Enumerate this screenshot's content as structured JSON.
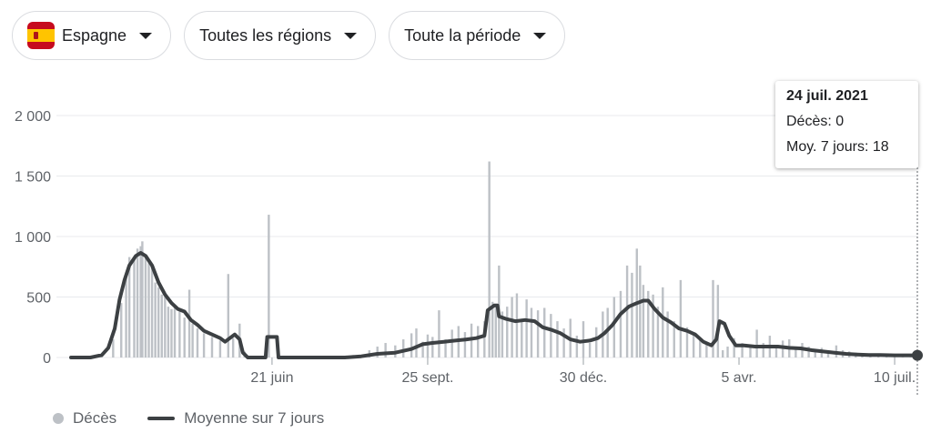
{
  "filters": {
    "country": "Espagne",
    "region": "Toutes les régions",
    "period": "Toute la période"
  },
  "colors": {
    "bars": "#bdc1c6",
    "line": "#3c4043",
    "grid": "#e8eaed",
    "axis_text": "#5f6368",
    "flag_red": "#c60b1e",
    "flag_yellow": "#ffc400"
  },
  "tooltip": {
    "date": "24 juil. 2021",
    "deaths": "Décès: 0",
    "avg": "Moy. 7 jours: 18"
  },
  "legend": {
    "bars_label": "Décès",
    "line_label": "Moyenne sur 7 jours"
  },
  "chart_data": {
    "type": "bar",
    "ylim": [
      0,
      2000
    ],
    "yticks": [
      0,
      500,
      1000,
      1500,
      2000
    ],
    "ytick_labels": [
      "0",
      "500",
      "1 000",
      "1 500",
      "2 000"
    ],
    "xticks": [
      {
        "date": "2020-06-21",
        "label": "21 juin"
      },
      {
        "date": "2020-09-25",
        "label": "25 sept."
      },
      {
        "date": "2020-12-30",
        "label": "30 déc."
      },
      {
        "date": "2021-04-05",
        "label": "5 avr."
      },
      {
        "date": "2021-07-10",
        "label": "10 juil."
      }
    ],
    "x_range": [
      "2020-02-18",
      "2021-07-24"
    ],
    "bar_series": {
      "name": "Décès",
      "points": [
        [
          "2020-03-01",
          0
        ],
        [
          "2020-03-08",
          20
        ],
        [
          "2020-03-15",
          150
        ],
        [
          "2020-03-20",
          450
        ],
        [
          "2020-03-23",
          700
        ],
        [
          "2020-03-25",
          830
        ],
        [
          "2020-03-28",
          820
        ],
        [
          "2020-03-30",
          900
        ],
        [
          "2020-04-01",
          920
        ],
        [
          "2020-04-02",
          960
        ],
        [
          "2020-04-04",
          850
        ],
        [
          "2020-04-06",
          780
        ],
        [
          "2020-04-08",
          750
        ],
        [
          "2020-04-10",
          620
        ],
        [
          "2020-04-12",
          580
        ],
        [
          "2020-04-14",
          520
        ],
        [
          "2020-04-16",
          500
        ],
        [
          "2020-04-18",
          420
        ],
        [
          "2020-04-20",
          400
        ],
        [
          "2020-04-22",
          430
        ],
        [
          "2020-04-25",
          380
        ],
        [
          "2020-04-28",
          330
        ],
        [
          "2020-05-01",
          560
        ],
        [
          "2020-05-03",
          280
        ],
        [
          "2020-05-06",
          240
        ],
        [
          "2020-05-10",
          200
        ],
        [
          "2020-05-15",
          170
        ],
        [
          "2020-05-20",
          140
        ],
        [
          "2020-05-25",
          690
        ],
        [
          "2020-05-28",
          160
        ],
        [
          "2020-06-01",
          280
        ],
        [
          "2020-06-04",
          50
        ],
        [
          "2020-06-08",
          0
        ],
        [
          "2020-06-19",
          1180
        ],
        [
          "2020-06-25",
          10
        ],
        [
          "2020-07-10",
          5
        ],
        [
          "2020-07-25",
          5
        ],
        [
          "2020-08-10",
          20
        ],
        [
          "2020-08-20",
          60
        ],
        [
          "2020-08-25",
          90
        ],
        [
          "2020-08-30",
          120
        ],
        [
          "2020-09-05",
          100
        ],
        [
          "2020-09-10",
          150
        ],
        [
          "2020-09-15",
          200
        ],
        [
          "2020-09-18",
          240
        ],
        [
          "2020-09-22",
          130
        ],
        [
          "2020-09-25",
          190
        ],
        [
          "2020-09-28",
          170
        ],
        [
          "2020-10-02",
          390
        ],
        [
          "2020-10-06",
          150
        ],
        [
          "2020-10-10",
          230
        ],
        [
          "2020-10-14",
          260
        ],
        [
          "2020-10-18",
          210
        ],
        [
          "2020-10-22",
          280
        ],
        [
          "2020-10-26",
          260
        ],
        [
          "2020-10-30",
          300
        ],
        [
          "2020-11-02",
          1620
        ],
        [
          "2020-11-04",
          460
        ],
        [
          "2020-11-06",
          420
        ],
        [
          "2020-11-08",
          760
        ],
        [
          "2020-11-10",
          380
        ],
        [
          "2020-11-13",
          420
        ],
        [
          "2020-11-16",
          500
        ],
        [
          "2020-11-19",
          530
        ],
        [
          "2020-11-22",
          320
        ],
        [
          "2020-11-25",
          480
        ],
        [
          "2020-11-28",
          410
        ],
        [
          "2020-12-02",
          390
        ],
        [
          "2020-12-06",
          410
        ],
        [
          "2020-12-10",
          360
        ],
        [
          "2020-12-14",
          300
        ],
        [
          "2020-12-18",
          240
        ],
        [
          "2020-12-22",
          320
        ],
        [
          "2020-12-26",
          180
        ],
        [
          "2020-12-30",
          300
        ],
        [
          "2021-01-03",
          120
        ],
        [
          "2021-01-07",
          250
        ],
        [
          "2021-01-11",
          380
        ],
        [
          "2021-01-14",
          410
        ],
        [
          "2021-01-18",
          500
        ],
        [
          "2021-01-22",
          550
        ],
        [
          "2021-01-26",
          760
        ],
        [
          "2021-01-29",
          700
        ],
        [
          "2021-02-01",
          900
        ],
        [
          "2021-02-03",
          760
        ],
        [
          "2021-02-05",
          600
        ],
        [
          "2021-02-08",
          550
        ],
        [
          "2021-02-11",
          520
        ],
        [
          "2021-02-14",
          420
        ],
        [
          "2021-02-17",
          580
        ],
        [
          "2021-02-20",
          380
        ],
        [
          "2021-02-24",
          300
        ],
        [
          "2021-02-28",
          640
        ],
        [
          "2021-03-04",
          250
        ],
        [
          "2021-03-08",
          200
        ],
        [
          "2021-03-12",
          150
        ],
        [
          "2021-03-16",
          130
        ],
        [
          "2021-03-20",
          640
        ],
        [
          "2021-03-23",
          600
        ],
        [
          "2021-03-26",
          60
        ],
        [
          "2021-03-29",
          90
        ],
        [
          "2021-04-02",
          160
        ],
        [
          "2021-04-07",
          120
        ],
        [
          "2021-04-12",
          100
        ],
        [
          "2021-04-16",
          230
        ],
        [
          "2021-04-20",
          120
        ],
        [
          "2021-04-24",
          180
        ],
        [
          "2021-04-28",
          100
        ],
        [
          "2021-05-02",
          140
        ],
        [
          "2021-05-06",
          150
        ],
        [
          "2021-05-10",
          80
        ],
        [
          "2021-05-14",
          120
        ],
        [
          "2021-05-18",
          90
        ],
        [
          "2021-05-22",
          60
        ],
        [
          "2021-05-26",
          80
        ],
        [
          "2021-05-30",
          40
        ],
        [
          "2021-06-04",
          100
        ],
        [
          "2021-06-08",
          60
        ],
        [
          "2021-06-12",
          50
        ],
        [
          "2021-06-16",
          40
        ],
        [
          "2021-06-20",
          20
        ],
        [
          "2021-06-25",
          30
        ],
        [
          "2021-06-30",
          20
        ],
        [
          "2021-07-05",
          15
        ],
        [
          "2021-07-10",
          25
        ],
        [
          "2021-07-15",
          10
        ],
        [
          "2021-07-20",
          15
        ],
        [
          "2021-07-24",
          0
        ]
      ]
    },
    "line_series": {
      "name": "Moyenne sur 7 jours",
      "points": [
        [
          "2020-02-18",
          0
        ],
        [
          "2020-03-01",
          0
        ],
        [
          "2020-03-08",
          20
        ],
        [
          "2020-03-12",
          80
        ],
        [
          "2020-03-16",
          240
        ],
        [
          "2020-03-19",
          480
        ],
        [
          "2020-03-22",
          640
        ],
        [
          "2020-03-25",
          760
        ],
        [
          "2020-03-29",
          840
        ],
        [
          "2020-04-01",
          865
        ],
        [
          "2020-04-04",
          840
        ],
        [
          "2020-04-08",
          760
        ],
        [
          "2020-04-12",
          620
        ],
        [
          "2020-04-16",
          520
        ],
        [
          "2020-04-20",
          450
        ],
        [
          "2020-04-24",
          400
        ],
        [
          "2020-04-28",
          380
        ],
        [
          "2020-05-02",
          310
        ],
        [
          "2020-05-06",
          270
        ],
        [
          "2020-05-10",
          220
        ],
        [
          "2020-05-15",
          190
        ],
        [
          "2020-05-20",
          160
        ],
        [
          "2020-05-23",
          130
        ],
        [
          "2020-05-26",
          160
        ],
        [
          "2020-05-29",
          190
        ],
        [
          "2020-06-01",
          150
        ],
        [
          "2020-06-03",
          40
        ],
        [
          "2020-06-06",
          0
        ],
        [
          "2020-06-17",
          0
        ],
        [
          "2020-06-18",
          170
        ],
        [
          "2020-06-24",
          170
        ],
        [
          "2020-06-25",
          0
        ],
        [
          "2020-08-05",
          0
        ],
        [
          "2020-08-15",
          10
        ],
        [
          "2020-08-25",
          30
        ],
        [
          "2020-09-05",
          40
        ],
        [
          "2020-09-15",
          70
        ],
        [
          "2020-09-22",
          110
        ],
        [
          "2020-09-28",
          120
        ],
        [
          "2020-10-05",
          130
        ],
        [
          "2020-10-12",
          140
        ],
        [
          "2020-10-19",
          150
        ],
        [
          "2020-10-25",
          160
        ],
        [
          "2020-10-30",
          180
        ],
        [
          "2020-11-01",
          390
        ],
        [
          "2020-11-05",
          430
        ],
        [
          "2020-11-07",
          430
        ],
        [
          "2020-11-08",
          340
        ],
        [
          "2020-11-12",
          320
        ],
        [
          "2020-11-18",
          300
        ],
        [
          "2020-11-24",
          310
        ],
        [
          "2020-11-30",
          300
        ],
        [
          "2020-12-05",
          250
        ],
        [
          "2020-12-10",
          230
        ],
        [
          "2020-12-16",
          200
        ],
        [
          "2020-12-22",
          150
        ],
        [
          "2020-12-28",
          130
        ],
        [
          "2021-01-03",
          140
        ],
        [
          "2021-01-08",
          160
        ],
        [
          "2021-01-12",
          200
        ],
        [
          "2021-01-17",
          270
        ],
        [
          "2021-01-22",
          360
        ],
        [
          "2021-01-27",
          420
        ],
        [
          "2021-02-01",
          450
        ],
        [
          "2021-02-05",
          470
        ],
        [
          "2021-02-08",
          470
        ],
        [
          "2021-02-12",
          400
        ],
        [
          "2021-02-17",
          330
        ],
        [
          "2021-02-22",
          290
        ],
        [
          "2021-02-27",
          240
        ],
        [
          "2021-03-04",
          220
        ],
        [
          "2021-03-09",
          190
        ],
        [
          "2021-03-14",
          130
        ],
        [
          "2021-03-19",
          100
        ],
        [
          "2021-03-22",
          150
        ],
        [
          "2021-03-24",
          300
        ],
        [
          "2021-03-27",
          280
        ],
        [
          "2021-03-30",
          180
        ],
        [
          "2021-04-03",
          100
        ],
        [
          "2021-04-08",
          100
        ],
        [
          "2021-04-15",
          90
        ],
        [
          "2021-04-22",
          90
        ],
        [
          "2021-04-29",
          90
        ],
        [
          "2021-05-06",
          80
        ],
        [
          "2021-05-13",
          75
        ],
        [
          "2021-05-20",
          60
        ],
        [
          "2021-05-27",
          50
        ],
        [
          "2021-06-03",
          40
        ],
        [
          "2021-06-10",
          30
        ],
        [
          "2021-06-17",
          25
        ],
        [
          "2021-06-24",
          20
        ],
        [
          "2021-07-01",
          20
        ],
        [
          "2021-07-10",
          18
        ],
        [
          "2021-07-24",
          18
        ]
      ]
    },
    "highlight": {
      "date": "2021-07-24",
      "value": 18
    }
  }
}
